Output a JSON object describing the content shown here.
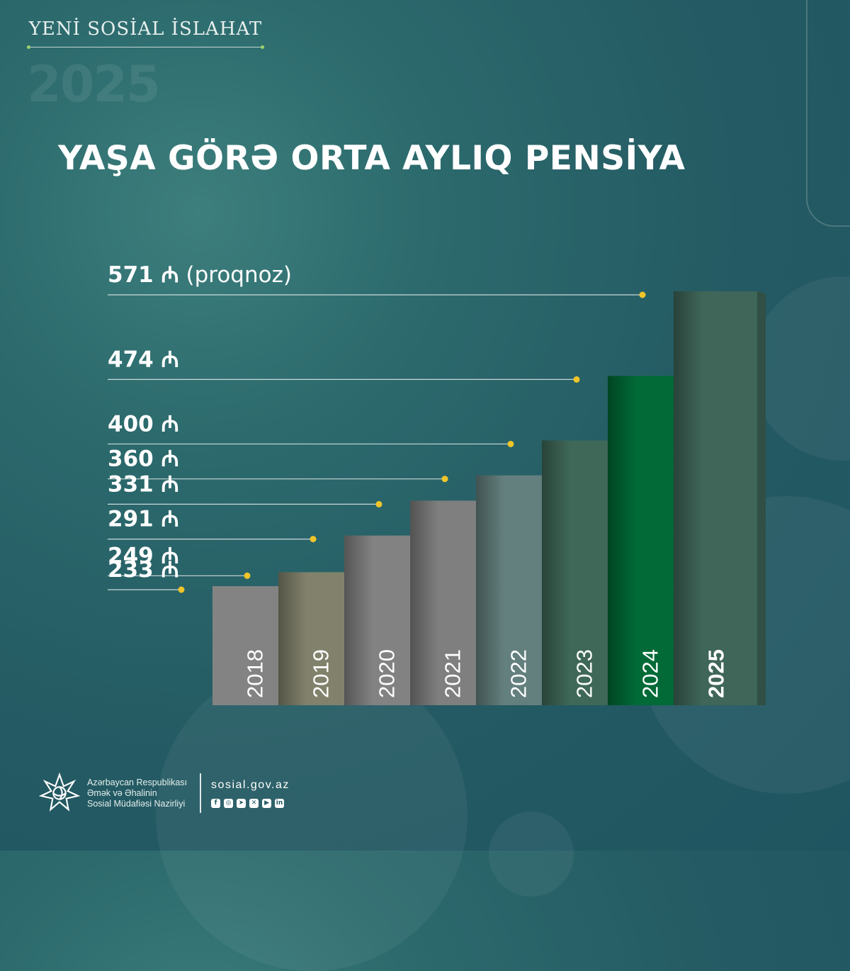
{
  "header": {
    "series_title": "YENİ SOSİAL İSLAHAT",
    "year": "2025",
    "title": "YAŞA GÖRƏ ORTA AYLIQ PENSİYA"
  },
  "chart_data": {
    "type": "bar",
    "title": "YAŞA GÖRƏ ORTA AYLIQ PENSİYA",
    "categories": [
      "2018",
      "2019",
      "2020",
      "2021",
      "2022",
      "2023",
      "2024",
      "2025"
    ],
    "values": [
      233,
      249,
      291,
      331,
      360,
      400,
      474,
      571
    ],
    "value_labels": [
      "233",
      "249",
      "291",
      "331",
      "360",
      "400",
      "474",
      "571"
    ],
    "currency_symbol": "₼",
    "forecast_note": "(proqnoz)",
    "forecast_index": 7,
    "highlight_index": 7,
    "bar_colors": [
      "#838383",
      "#82826c",
      "#828282",
      "#7f7f7f",
      "#64807e",
      "#3f6858",
      "#016a36",
      "#3f6658"
    ],
    "accent_color": "#f0c529",
    "xlabel": "",
    "ylabel": ""
  },
  "footer": {
    "org_lines": [
      "Azərbaycan Respublikası",
      "Əmək və Əhalinin",
      "Sosial Müdafiəsi Nazirliyi"
    ],
    "website": "sosial.gov.az",
    "socials": [
      "facebook-icon",
      "instagram-icon",
      "telegram-icon",
      "x-icon",
      "youtube-icon",
      "linkedin-icon"
    ]
  }
}
